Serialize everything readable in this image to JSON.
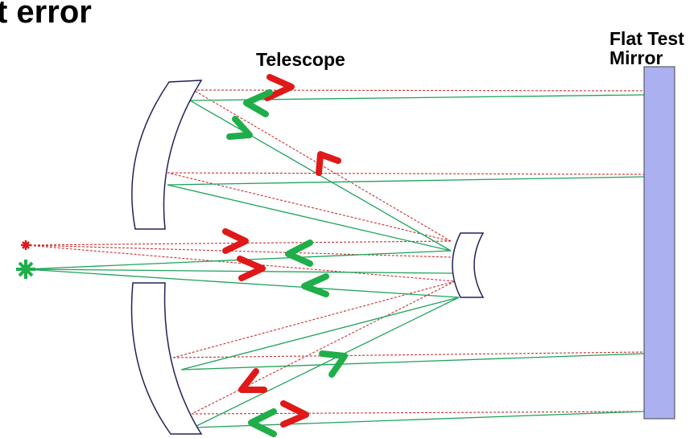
{
  "title": "t error",
  "telescope_label": "Telescope",
  "flat_mirror_label": [
    "Flat Test",
    "Mirror"
  ]
}
